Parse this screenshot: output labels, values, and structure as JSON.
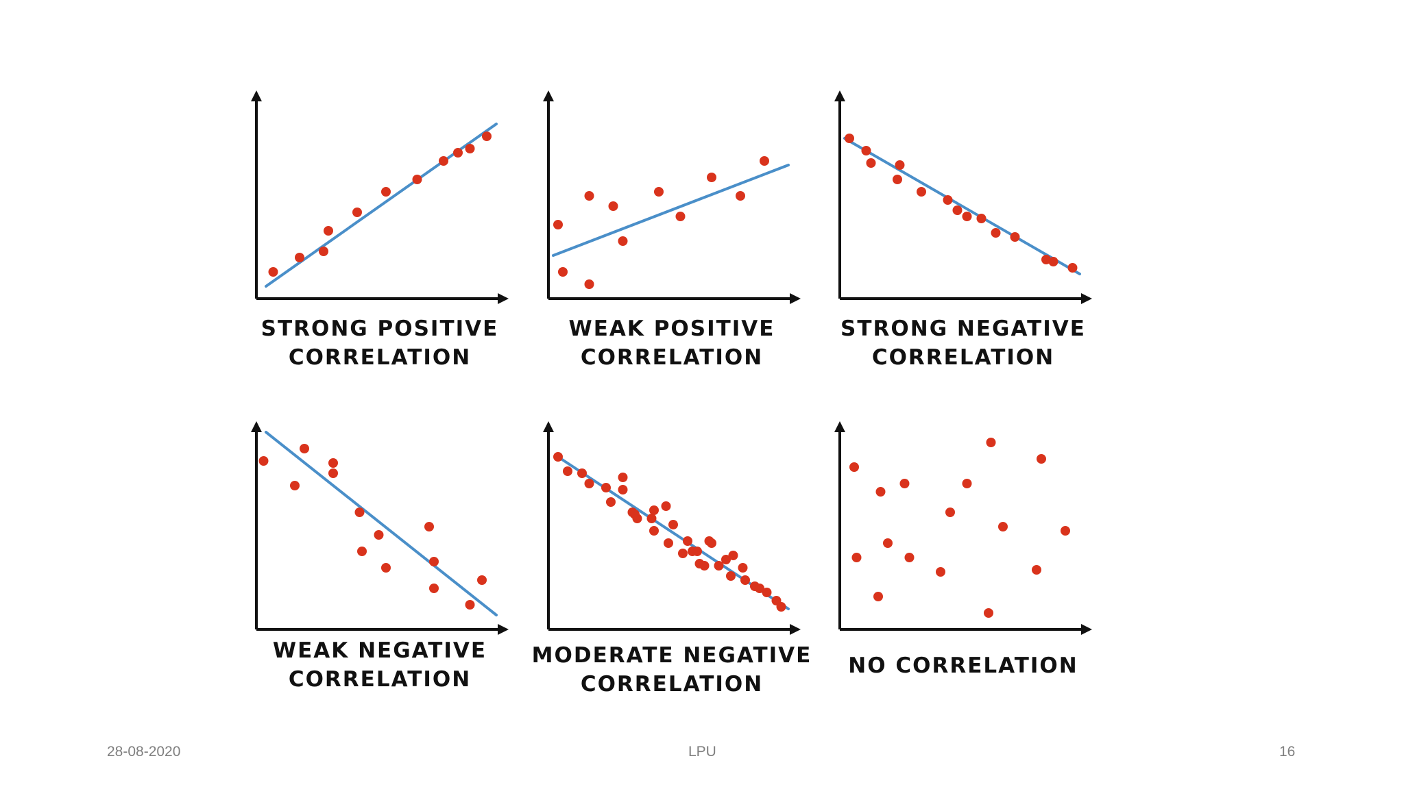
{
  "slide": {
    "footer_date": "28-08-2020",
    "footer_org": "LPU",
    "page_number": "16"
  },
  "style": {
    "axis_color": "#111111",
    "point_color": "#d9331c",
    "line_color": "#4a8fc9"
  },
  "chart_data": [
    {
      "type": "scatter",
      "title_lines": [
        "STRONG POSITIVE",
        "CORRELATION"
      ],
      "xlim": [
        0,
        100
      ],
      "ylim": [
        0,
        100
      ],
      "points": [
        [
          7,
          13
        ],
        [
          18,
          20
        ],
        [
          28,
          23
        ],
        [
          30,
          33
        ],
        [
          42,
          42
        ],
        [
          54,
          52
        ],
        [
          67,
          58
        ],
        [
          78,
          67
        ],
        [
          84,
          71
        ],
        [
          89,
          73
        ],
        [
          96,
          79
        ]
      ],
      "trend": [
        [
          4,
          6
        ],
        [
          100,
          85
        ]
      ]
    },
    {
      "type": "scatter",
      "title_lines": [
        "WEAK POSITIVE",
        "CORRELATION"
      ],
      "xlim": [
        0,
        100
      ],
      "ylim": [
        0,
        100
      ],
      "points": [
        [
          4,
          36
        ],
        [
          6,
          13
        ],
        [
          17,
          7
        ],
        [
          17,
          50
        ],
        [
          27,
          45
        ],
        [
          31,
          28
        ],
        [
          46,
          52
        ],
        [
          55,
          40
        ],
        [
          68,
          59
        ],
        [
          80,
          50
        ],
        [
          90,
          67
        ]
      ],
      "trend": [
        [
          2,
          21
        ],
        [
          100,
          65
        ]
      ]
    },
    {
      "type": "scatter",
      "title_lines": [
        "STRONG NEGATIVE",
        "CORRELATION"
      ],
      "xlim": [
        0,
        100
      ],
      "ylim": [
        0,
        100
      ],
      "points": [
        [
          4,
          78
        ],
        [
          11,
          72
        ],
        [
          13,
          66
        ],
        [
          24,
          58
        ],
        [
          25,
          65
        ],
        [
          34,
          52
        ],
        [
          45,
          48
        ],
        [
          49,
          43
        ],
        [
          53,
          40
        ],
        [
          59,
          39
        ],
        [
          65,
          32
        ],
        [
          73,
          30
        ],
        [
          86,
          19
        ],
        [
          89,
          18
        ],
        [
          97,
          15
        ]
      ],
      "trend": [
        [
          2,
          78
        ],
        [
          100,
          12
        ]
      ]
    },
    {
      "type": "scatter",
      "title_lines": [
        "WEAK NEGATIVE",
        "CORRELATION"
      ],
      "xlim": [
        0,
        100
      ],
      "ylim": [
        0,
        100
      ],
      "points": [
        [
          3,
          82
        ],
        [
          16,
          70
        ],
        [
          20,
          88
        ],
        [
          32,
          81
        ],
        [
          32,
          76
        ],
        [
          43,
          57
        ],
        [
          44,
          38
        ],
        [
          51,
          46
        ],
        [
          54,
          30
        ],
        [
          72,
          50
        ],
        [
          74,
          33
        ],
        [
          74,
          20
        ],
        [
          89,
          12
        ],
        [
          94,
          24
        ]
      ],
      "trend": [
        [
          4,
          96
        ],
        [
          100,
          7
        ]
      ]
    },
    {
      "type": "scatter",
      "title_lines": [
        "MODERATE NEGATIVE",
        "CORRELATION"
      ],
      "xlim": [
        0,
        100
      ],
      "ylim": [
        0,
        100
      ],
      "points": [
        [
          4,
          84
        ],
        [
          8,
          77
        ],
        [
          14,
          76
        ],
        [
          17,
          71
        ],
        [
          24,
          69
        ],
        [
          26,
          62
        ],
        [
          31,
          68
        ],
        [
          31,
          74
        ],
        [
          35,
          57
        ],
        [
          36,
          56
        ],
        [
          37,
          54
        ],
        [
          43,
          54
        ],
        [
          44,
          58
        ],
        [
          44,
          48
        ],
        [
          49,
          60
        ],
        [
          50,
          42
        ],
        [
          52,
          51
        ],
        [
          56,
          37
        ],
        [
          58,
          43
        ],
        [
          60,
          38
        ],
        [
          62,
          38
        ],
        [
          63,
          32
        ],
        [
          65,
          31
        ],
        [
          67,
          43
        ],
        [
          68,
          42
        ],
        [
          71,
          31
        ],
        [
          74,
          34
        ],
        [
          76,
          26
        ],
        [
          77,
          36
        ],
        [
          81,
          30
        ],
        [
          82,
          24
        ],
        [
          86,
          21
        ],
        [
          88,
          20
        ],
        [
          91,
          18
        ],
        [
          95,
          14
        ],
        [
          97,
          11
        ]
      ],
      "trend": [
        [
          4,
          84
        ],
        [
          100,
          10
        ]
      ]
    },
    {
      "type": "scatter",
      "title_lines": [
        "NO CORRELATION"
      ],
      "xlim": [
        0,
        100
      ],
      "ylim": [
        0,
        100
      ],
      "points": [
        [
          6,
          79
        ],
        [
          7,
          35
        ],
        [
          17,
          67
        ],
        [
          16,
          16
        ],
        [
          20,
          42
        ],
        [
          27,
          71
        ],
        [
          29,
          35
        ],
        [
          42,
          28
        ],
        [
          46,
          57
        ],
        [
          53,
          71
        ],
        [
          62,
          8
        ],
        [
          63,
          91
        ],
        [
          68,
          50
        ],
        [
          82,
          29
        ],
        [
          84,
          83
        ],
        [
          94,
          48
        ]
      ],
      "trend": null
    }
  ]
}
